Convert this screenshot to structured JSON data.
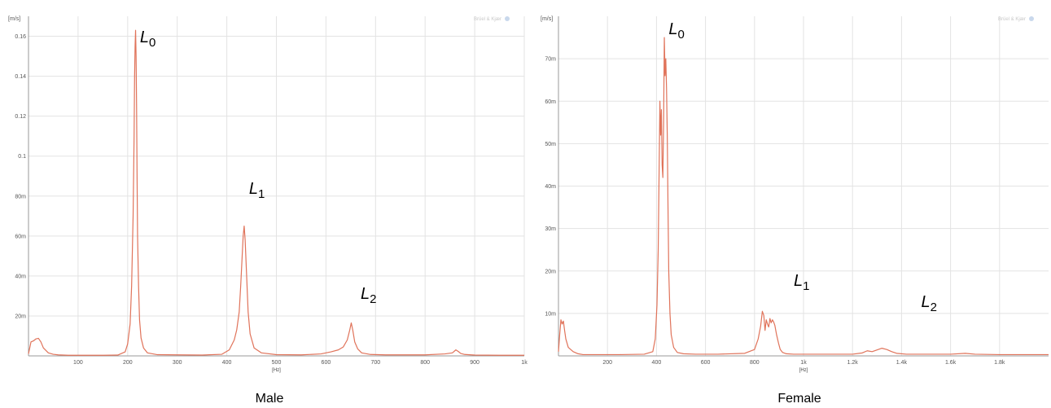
{
  "chart_data": [
    {
      "type": "line",
      "caption": "Male",
      "y_unit": "[m/s]",
      "x_unit": "[Hz]",
      "brand": "Brüel & Kjær",
      "xlim": [
        0,
        1000
      ],
      "ylim": [
        0,
        0.17
      ],
      "grid": true,
      "x_ticks": [
        100,
        200,
        300,
        400,
        500,
        600,
        700,
        800,
        900,
        1000
      ],
      "x_tick_labels": [
        "100",
        "200",
        "300",
        "400",
        "500",
        "600",
        "700",
        "800",
        "900",
        "1k"
      ],
      "y_ticks": [
        0.02,
        0.04,
        0.06,
        0.08,
        0.1,
        0.12,
        0.14,
        0.16
      ],
      "y_tick_labels": [
        "20m",
        "40m",
        "60m",
        "80m",
        "0.1",
        "0.12",
        "0.14",
        "0.16"
      ],
      "peak_labels": [
        {
          "letter": "L",
          "sub": "0",
          "x": 215
        },
        {
          "letter": "L",
          "sub": "1",
          "x": 435
        },
        {
          "letter": "L",
          "sub": "2",
          "x": 660
        }
      ],
      "series": [
        {
          "color": "#e0735a",
          "x": [
            0,
            5,
            10,
            15,
            20,
            25,
            30,
            40,
            50,
            60,
            80,
            100,
            150,
            180,
            195,
            200,
            205,
            208,
            211,
            213,
            214,
            215,
            216,
            217,
            218,
            219,
            220,
            222,
            224,
            227,
            232,
            240,
            260,
            300,
            350,
            390,
            405,
            415,
            420,
            425,
            428,
            431,
            433,
            435,
            437,
            440,
            443,
            447,
            455,
            470,
            500,
            550,
            590,
            610,
            625,
            635,
            643,
            648,
            651,
            654,
            658,
            664,
            672,
            690,
            720,
            800,
            840,
            855,
            862,
            867,
            872,
            880,
            900,
            950,
            1000
          ],
          "y": [
            0.001,
            0.007,
            0.0075,
            0.0085,
            0.0088,
            0.007,
            0.004,
            0.0015,
            0.0008,
            0.0005,
            0.0003,
            0.0003,
            0.0003,
            0.0004,
            0.002,
            0.006,
            0.016,
            0.035,
            0.07,
            0.11,
            0.14,
            0.155,
            0.163,
            0.15,
            0.125,
            0.09,
            0.06,
            0.035,
            0.018,
            0.009,
            0.004,
            0.0015,
            0.0006,
            0.0005,
            0.0004,
            0.0008,
            0.003,
            0.008,
            0.013,
            0.022,
            0.035,
            0.05,
            0.06,
            0.065,
            0.058,
            0.04,
            0.022,
            0.011,
            0.004,
            0.0015,
            0.0006,
            0.0005,
            0.001,
            0.002,
            0.003,
            0.0045,
            0.008,
            0.013,
            0.0165,
            0.013,
            0.007,
            0.0035,
            0.0015,
            0.0007,
            0.0005,
            0.0005,
            0.001,
            0.0015,
            0.003,
            0.0022,
            0.0012,
            0.0007,
            0.0004,
            0.0003,
            0.0003
          ]
        }
      ]
    },
    {
      "type": "line",
      "caption": "Female",
      "y_unit": "[m/s]",
      "x_unit": "[Hz]",
      "brand": "Brüel & Kjær",
      "xlim": [
        0,
        2000
      ],
      "ylim": [
        0,
        0.08
      ],
      "grid": true,
      "x_ticks": [
        200,
        400,
        600,
        800,
        1000,
        1200,
        1400,
        1600,
        1800
      ],
      "x_tick_labels": [
        "200",
        "400",
        "600",
        "800",
        "1k",
        "1.2k",
        "1.4k",
        "1.6k",
        "1.8k"
      ],
      "y_ticks": [
        0.01,
        0.02,
        0.03,
        0.04,
        0.05,
        0.06,
        0.07
      ],
      "y_tick_labels": [
        "10m",
        "20m",
        "30m",
        "40m",
        "50m",
        "60m",
        "70m"
      ],
      "peak_labels": [
        {
          "letter": "L",
          "sub": "0",
          "x": 430
        },
        {
          "letter": "L",
          "sub": "1",
          "x": 940
        },
        {
          "letter": "L",
          "sub": "2",
          "x": 1460
        }
      ],
      "series": [
        {
          "color": "#e0735a",
          "x": [
            0,
            5,
            10,
            15,
            20,
            25,
            30,
            40,
            60,
            80,
            100,
            150,
            250,
            350,
            385,
            395,
            402,
            407,
            411,
            414,
            417,
            420,
            423,
            426,
            429,
            432,
            435,
            438,
            441,
            444,
            447,
            450,
            455,
            460,
            470,
            485,
            510,
            560,
            650,
            760,
            800,
            815,
            825,
            832,
            838,
            843,
            848,
            853,
            858,
            863,
            868,
            873,
            878,
            883,
            890,
            898,
            905,
            915,
            930,
            960,
            1000,
            1100,
            1200,
            1240,
            1260,
            1280,
            1300,
            1320,
            1340,
            1360,
            1380,
            1420,
            1500,
            1600,
            1660,
            1700,
            1800,
            1900,
            2000
          ],
          "y": [
            0.001,
            0.005,
            0.0085,
            0.0075,
            0.0082,
            0.006,
            0.004,
            0.002,
            0.001,
            0.0005,
            0.0003,
            0.0003,
            0.0003,
            0.0004,
            0.001,
            0.004,
            0.012,
            0.025,
            0.045,
            0.06,
            0.052,
            0.058,
            0.045,
            0.042,
            0.055,
            0.075,
            0.066,
            0.07,
            0.063,
            0.052,
            0.035,
            0.02,
            0.01,
            0.005,
            0.002,
            0.0008,
            0.0005,
            0.0004,
            0.0004,
            0.0006,
            0.0015,
            0.004,
            0.007,
            0.0105,
            0.0095,
            0.006,
            0.0085,
            0.0075,
            0.0068,
            0.0088,
            0.0078,
            0.0085,
            0.008,
            0.0072,
            0.005,
            0.003,
            0.0015,
            0.0008,
            0.0005,
            0.0004,
            0.0004,
            0.0004,
            0.0004,
            0.0007,
            0.0012,
            0.001,
            0.0014,
            0.0018,
            0.0015,
            0.001,
            0.0006,
            0.0004,
            0.0004,
            0.0004,
            0.0006,
            0.0004,
            0.0003,
            0.0003,
            0.0003
          ]
        }
      ]
    }
  ]
}
